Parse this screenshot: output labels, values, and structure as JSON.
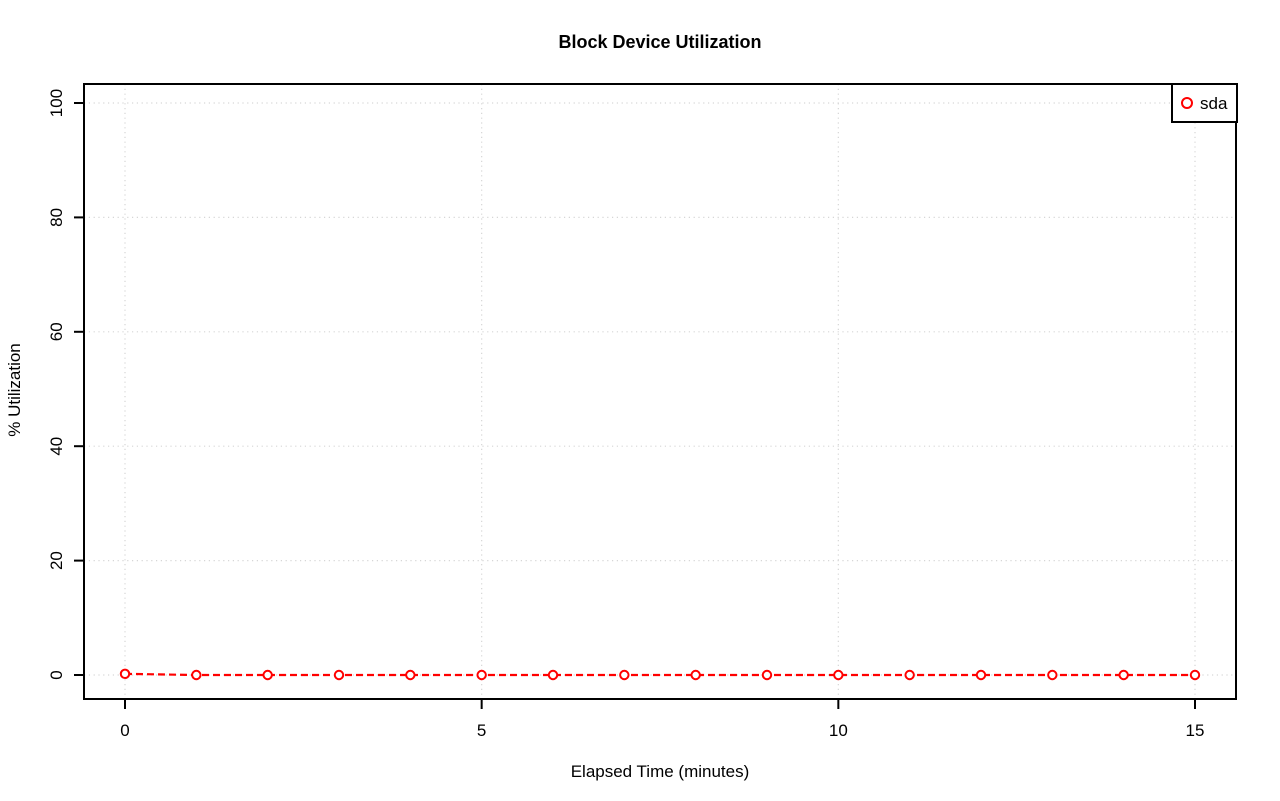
{
  "window": {
    "background": "#ffffff"
  },
  "chart_data": {
    "type": "line",
    "title": "Block Device Utilization",
    "xlabel": "Elapsed Time (minutes)",
    "ylabel": "% Utilization",
    "xlim": [
      0,
      15
    ],
    "ylim": [
      0,
      100
    ],
    "xticks": [
      0,
      5,
      10,
      15
    ],
    "yticks": [
      0,
      20,
      40,
      60,
      80,
      100
    ],
    "grid": {
      "visible": true,
      "style": "dotted",
      "color": "#d6d6d6"
    },
    "x": [
      0,
      1,
      2,
      3,
      4,
      5,
      6,
      7,
      8,
      9,
      10,
      11,
      12,
      13,
      14,
      15
    ],
    "series": [
      {
        "name": "sda",
        "color": "#ff0000",
        "marker": "open-circle",
        "line_style": "dashed",
        "values": [
          0.2,
          0,
          0,
          0,
          0,
          0,
          0,
          0,
          0,
          0,
          0,
          0,
          0,
          0,
          0,
          0
        ]
      }
    ],
    "legend": {
      "position": "top-right",
      "entries": [
        {
          "label": "sda",
          "marker": "open-circle",
          "color": "#ff0000"
        }
      ]
    }
  }
}
